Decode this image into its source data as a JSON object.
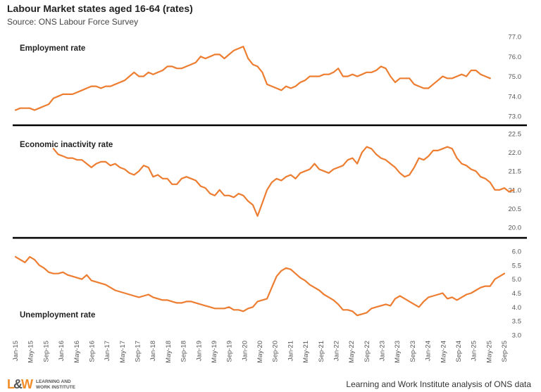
{
  "title": "Labour Market states aged 16-64 (rates)",
  "subtitle": "Source: ONS Labour Force Survey",
  "footer": "Learning and Work Institute analysis of ONS data",
  "logo": {
    "mark_left": "L",
    "mark_amp": "&",
    "mark_right": "W",
    "line1": "LEARNING AND",
    "line2": "WORK INSTITUTE"
  },
  "colors": {
    "line": "#ED7D31",
    "divider": "#000000",
    "text": "#555555"
  },
  "chart_data": {
    "type": "line",
    "x_labels": [
      "Jan-15",
      "May-15",
      "Sep-15",
      "Jan-16",
      "May-16",
      "Sep-16",
      "Jan-17",
      "May-17",
      "Sep-17",
      "Jan-18",
      "May-18",
      "Sep-18",
      "Jan-19",
      "May-19",
      "Sep-19",
      "Jan-20",
      "May-20",
      "Sep-20",
      "Jan-21",
      "May-21",
      "Sep-21",
      "Jan-22",
      "May-22",
      "Sep-22",
      "Jan-23",
      "May-23",
      "Sep-23",
      "Jan-24",
      "May-24",
      "Sep-24",
      "Jan-25",
      "May-25",
      "Sep-25"
    ],
    "panels": [
      {
        "name": "Employment rate",
        "ylim": [
          73.0,
          77.0
        ],
        "yticks": [
          "77.0",
          "76.0",
          "75.0",
          "74.0",
          "73.0"
        ],
        "points": [
          [
            0,
            73.3
          ],
          [
            1,
            73.4
          ],
          [
            2,
            73.4
          ],
          [
            3,
            73.4
          ],
          [
            4,
            73.3
          ],
          [
            5,
            73.4
          ],
          [
            6,
            73.5
          ],
          [
            7,
            73.6
          ],
          [
            8,
            73.9
          ],
          [
            9,
            74.0
          ],
          [
            10,
            74.1
          ],
          [
            11,
            74.1
          ],
          [
            12,
            74.1
          ],
          [
            13,
            74.2
          ],
          [
            14,
            74.3
          ],
          [
            15,
            74.4
          ],
          [
            16,
            74.5
          ],
          [
            17,
            74.5
          ],
          [
            18,
            74.4
          ],
          [
            19,
            74.5
          ],
          [
            20,
            74.5
          ],
          [
            21,
            74.6
          ],
          [
            22,
            74.7
          ],
          [
            23,
            74.8
          ],
          [
            24,
            75.0
          ],
          [
            25,
            75.2
          ],
          [
            26,
            75.0
          ],
          [
            27,
            75.0
          ],
          [
            28,
            75.2
          ],
          [
            29,
            75.1
          ],
          [
            30,
            75.2
          ],
          [
            31,
            75.3
          ],
          [
            32,
            75.5
          ],
          [
            33,
            75.5
          ],
          [
            34,
            75.4
          ],
          [
            35,
            75.4
          ],
          [
            36,
            75.5
          ],
          [
            37,
            75.6
          ],
          [
            38,
            75.7
          ],
          [
            39,
            76.0
          ],
          [
            40,
            75.9
          ],
          [
            41,
            76.0
          ],
          [
            42,
            76.1
          ],
          [
            43,
            76.1
          ],
          [
            44,
            75.9
          ],
          [
            45,
            76.1
          ],
          [
            46,
            76.3
          ],
          [
            47,
            76.4
          ],
          [
            48,
            76.5
          ],
          [
            49,
            75.9
          ],
          [
            50,
            75.6
          ],
          [
            51,
            75.5
          ],
          [
            52,
            75.2
          ],
          [
            53,
            74.6
          ],
          [
            54,
            74.5
          ],
          [
            55,
            74.4
          ],
          [
            56,
            74.3
          ],
          [
            57,
            74.5
          ],
          [
            58,
            74.4
          ],
          [
            59,
            74.5
          ],
          [
            60,
            74.7
          ],
          [
            61,
            74.8
          ],
          [
            62,
            75.0
          ],
          [
            63,
            75.0
          ],
          [
            64,
            75.0
          ],
          [
            65,
            75.1
          ],
          [
            66,
            75.1
          ],
          [
            67,
            75.2
          ],
          [
            68,
            75.4
          ],
          [
            69,
            75.0
          ],
          [
            70,
            75.0
          ],
          [
            71,
            75.1
          ],
          [
            72,
            75.0
          ],
          [
            73,
            75.1
          ],
          [
            74,
            75.2
          ],
          [
            75,
            75.2
          ],
          [
            76,
            75.3
          ],
          [
            77,
            75.5
          ],
          [
            78,
            75.4
          ],
          [
            79,
            75.0
          ],
          [
            80,
            74.7
          ],
          [
            81,
            74.9
          ],
          [
            82,
            74.9
          ],
          [
            83,
            74.9
          ],
          [
            84,
            74.6
          ],
          [
            85,
            74.5
          ],
          [
            86,
            74.4
          ],
          [
            87,
            74.4
          ],
          [
            88,
            74.6
          ],
          [
            89,
            74.8
          ],
          [
            90,
            75.0
          ],
          [
            91,
            74.9
          ],
          [
            92,
            74.9
          ],
          [
            93,
            75.0
          ],
          [
            94,
            75.1
          ],
          [
            95,
            75.0
          ],
          [
            96,
            75.3
          ],
          [
            97,
            75.3
          ],
          [
            98,
            75.1
          ],
          [
            99,
            75.0
          ],
          [
            100,
            74.9
          ]
        ]
      },
      {
        "name": "Economic inactivity rate",
        "ylim": [
          20.0,
          22.5
        ],
        "yticks": [
          "22.5",
          "22.0",
          "21.5",
          "21.0",
          "20.5",
          "20.0"
        ],
        "points": [
          [
            8,
            22.1
          ],
          [
            9,
            21.95
          ],
          [
            10,
            21.9
          ],
          [
            11,
            21.85
          ],
          [
            12,
            21.85
          ],
          [
            13,
            21.8
          ],
          [
            14,
            21.8
          ],
          [
            15,
            21.7
          ],
          [
            16,
            21.6
          ],
          [
            17,
            21.7
          ],
          [
            18,
            21.75
          ],
          [
            19,
            21.75
          ],
          [
            20,
            21.65
          ],
          [
            21,
            21.7
          ],
          [
            22,
            21.6
          ],
          [
            23,
            21.55
          ],
          [
            24,
            21.45
          ],
          [
            25,
            21.4
          ],
          [
            26,
            21.5
          ],
          [
            27,
            21.65
          ],
          [
            28,
            21.6
          ],
          [
            29,
            21.35
          ],
          [
            30,
            21.4
          ],
          [
            31,
            21.3
          ],
          [
            32,
            21.3
          ],
          [
            33,
            21.15
          ],
          [
            34,
            21.15
          ],
          [
            35,
            21.3
          ],
          [
            36,
            21.35
          ],
          [
            37,
            21.3
          ],
          [
            38,
            21.25
          ],
          [
            39,
            21.1
          ],
          [
            40,
            21.05
          ],
          [
            41,
            20.9
          ],
          [
            42,
            20.85
          ],
          [
            43,
            21.0
          ],
          [
            44,
            20.85
          ],
          [
            45,
            20.85
          ],
          [
            46,
            20.8
          ],
          [
            47,
            20.9
          ],
          [
            48,
            20.85
          ],
          [
            49,
            20.7
          ],
          [
            50,
            20.6
          ],
          [
            51,
            20.3
          ],
          [
            52,
            20.65
          ],
          [
            53,
            21.0
          ],
          [
            54,
            21.2
          ],
          [
            55,
            21.3
          ],
          [
            56,
            21.25
          ],
          [
            57,
            21.35
          ],
          [
            58,
            21.4
          ],
          [
            59,
            21.3
          ],
          [
            60,
            21.45
          ],
          [
            61,
            21.5
          ],
          [
            62,
            21.55
          ],
          [
            63,
            21.7
          ],
          [
            64,
            21.55
          ],
          [
            65,
            21.5
          ],
          [
            66,
            21.45
          ],
          [
            67,
            21.55
          ],
          [
            68,
            21.6
          ],
          [
            69,
            21.65
          ],
          [
            70,
            21.8
          ],
          [
            71,
            21.85
          ],
          [
            72,
            21.7
          ],
          [
            73,
            22.0
          ],
          [
            74,
            22.15
          ],
          [
            75,
            22.1
          ],
          [
            76,
            21.95
          ],
          [
            77,
            21.85
          ],
          [
            78,
            21.8
          ],
          [
            79,
            21.7
          ],
          [
            80,
            21.6
          ],
          [
            81,
            21.45
          ],
          [
            82,
            21.35
          ],
          [
            83,
            21.4
          ],
          [
            84,
            21.6
          ],
          [
            85,
            21.85
          ],
          [
            86,
            21.8
          ],
          [
            87,
            21.9
          ],
          [
            88,
            22.05
          ],
          [
            89,
            22.05
          ],
          [
            90,
            22.1
          ],
          [
            91,
            22.15
          ],
          [
            92,
            22.1
          ],
          [
            93,
            21.85
          ],
          [
            94,
            21.7
          ],
          [
            95,
            21.65
          ],
          [
            96,
            21.55
          ],
          [
            97,
            21.5
          ],
          [
            98,
            21.35
          ],
          [
            99,
            21.3
          ],
          [
            100,
            21.2
          ],
          [
            101,
            21.0
          ],
          [
            102,
            21.0
          ],
          [
            103,
            21.05
          ],
          [
            104,
            20.95
          ],
          [
            105,
            21.0
          ]
        ]
      },
      {
        "name": "Unemployment rate",
        "ylim": [
          3.0,
          6.0
        ],
        "yticks": [
          "6.0",
          "5.5",
          "5.0",
          "4.5",
          "4.0",
          "3.5",
          "3.0"
        ],
        "points": [
          [
            0,
            5.8
          ],
          [
            1,
            5.7
          ],
          [
            2,
            5.6
          ],
          [
            3,
            5.8
          ],
          [
            4,
            5.7
          ],
          [
            5,
            5.5
          ],
          [
            6,
            5.4
          ],
          [
            7,
            5.25
          ],
          [
            8,
            5.2
          ],
          [
            9,
            5.2
          ],
          [
            10,
            5.25
          ],
          [
            11,
            5.15
          ],
          [
            12,
            5.1
          ],
          [
            13,
            5.05
          ],
          [
            14,
            5.0
          ],
          [
            15,
            5.15
          ],
          [
            16,
            4.95
          ],
          [
            17,
            4.9
          ],
          [
            18,
            4.85
          ],
          [
            19,
            4.8
          ],
          [
            20,
            4.7
          ],
          [
            21,
            4.6
          ],
          [
            22,
            4.55
          ],
          [
            23,
            4.5
          ],
          [
            24,
            4.45
          ],
          [
            25,
            4.4
          ],
          [
            26,
            4.35
          ],
          [
            27,
            4.4
          ],
          [
            28,
            4.45
          ],
          [
            29,
            4.35
          ],
          [
            30,
            4.3
          ],
          [
            31,
            4.25
          ],
          [
            32,
            4.25
          ],
          [
            33,
            4.2
          ],
          [
            34,
            4.15
          ],
          [
            35,
            4.15
          ],
          [
            36,
            4.2
          ],
          [
            37,
            4.2
          ],
          [
            38,
            4.15
          ],
          [
            39,
            4.1
          ],
          [
            40,
            4.05
          ],
          [
            41,
            4.0
          ],
          [
            42,
            3.95
          ],
          [
            43,
            3.95
          ],
          [
            44,
            3.95
          ],
          [
            45,
            4.0
          ],
          [
            46,
            3.9
          ],
          [
            47,
            3.9
          ],
          [
            48,
            3.85
          ],
          [
            49,
            3.95
          ],
          [
            50,
            4.0
          ],
          [
            51,
            4.2
          ],
          [
            52,
            4.25
          ],
          [
            53,
            4.3
          ],
          [
            54,
            4.7
          ],
          [
            55,
            5.1
          ],
          [
            56,
            5.3
          ],
          [
            57,
            5.4
          ],
          [
            58,
            5.35
          ],
          [
            59,
            5.2
          ],
          [
            60,
            5.05
          ],
          [
            61,
            4.95
          ],
          [
            62,
            4.8
          ],
          [
            63,
            4.7
          ],
          [
            64,
            4.6
          ],
          [
            65,
            4.45
          ],
          [
            66,
            4.35
          ],
          [
            67,
            4.25
          ],
          [
            68,
            4.1
          ],
          [
            69,
            3.9
          ],
          [
            70,
            3.9
          ],
          [
            71,
            3.85
          ],
          [
            72,
            3.7
          ],
          [
            73,
            3.75
          ],
          [
            74,
            3.8
          ],
          [
            75,
            3.95
          ],
          [
            76,
            4.0
          ],
          [
            77,
            4.05
          ],
          [
            78,
            4.1
          ],
          [
            79,
            4.05
          ],
          [
            80,
            4.3
          ],
          [
            81,
            4.4
          ],
          [
            82,
            4.3
          ],
          [
            83,
            4.2
          ],
          [
            84,
            4.1
          ],
          [
            85,
            4.0
          ],
          [
            86,
            4.2
          ],
          [
            87,
            4.35
          ],
          [
            88,
            4.4
          ],
          [
            89,
            4.45
          ],
          [
            90,
            4.5
          ],
          [
            91,
            4.3
          ],
          [
            92,
            4.35
          ],
          [
            93,
            4.25
          ],
          [
            94,
            4.35
          ],
          [
            95,
            4.45
          ],
          [
            96,
            4.5
          ],
          [
            97,
            4.6
          ],
          [
            98,
            4.7
          ],
          [
            99,
            4.75
          ],
          [
            100,
            4.75
          ],
          [
            101,
            5.0
          ],
          [
            102,
            5.1
          ],
          [
            103,
            5.2
          ]
        ]
      }
    ]
  }
}
